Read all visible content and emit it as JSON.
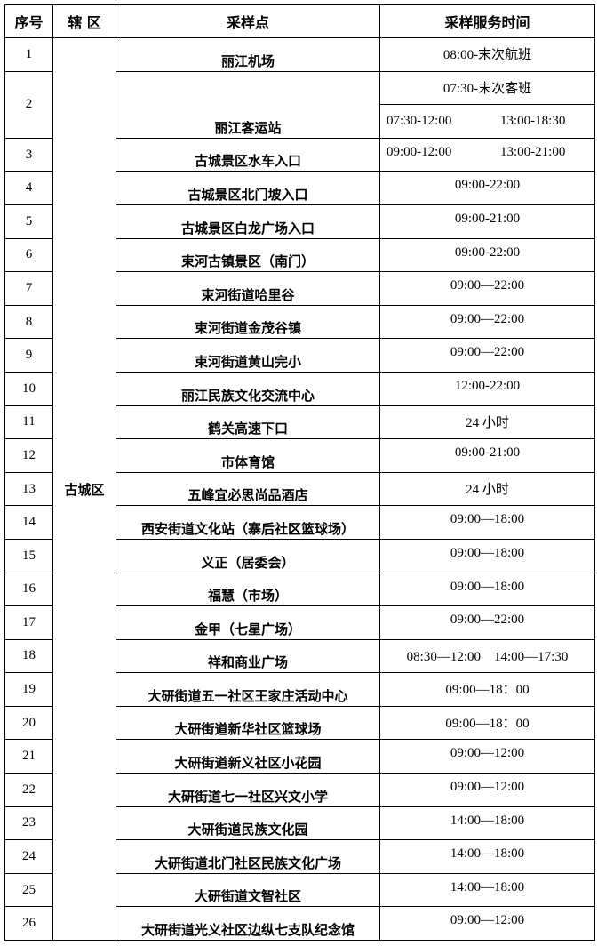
{
  "headers": {
    "no": "序号",
    "district": "辖 区",
    "site": "采样点",
    "time": "采样服务时间"
  },
  "district": "古城区",
  "rows": [
    {
      "no": "1",
      "site": "丽江机场",
      "time": "08:00-末次航班"
    },
    {
      "no": "2",
      "site": "丽江客运站",
      "time": "07:30-末次客班",
      "time_extra": [
        "07:30-12:00",
        "13:00-18:30"
      ]
    },
    {
      "no": "3",
      "site": "古城景区水车入口",
      "times": [
        "09:00-12:00",
        "13:00-21:00"
      ]
    },
    {
      "no": "4",
      "site": "古城景区北门坡入口",
      "time": "09:00-22:00"
    },
    {
      "no": "5",
      "site": "古城景区白龙广场入口",
      "time": "09:00-21:00"
    },
    {
      "no": "6",
      "site": "束河古镇景区（南门）",
      "time": "09:00-22:00"
    },
    {
      "no": "7",
      "site": "束河街道哈里谷",
      "time": "09:00—22:00"
    },
    {
      "no": "8",
      "site": "束河街道金茂谷镇",
      "time": "09:00—22:00"
    },
    {
      "no": "9",
      "site": "束河街道黄山完小",
      "time": "09:00—22:00"
    },
    {
      "no": "10",
      "site": "丽江民族文化交流中心",
      "time": "12:00-22:00"
    },
    {
      "no": "11",
      "site": "鹤关高速下口",
      "time": "24 小时"
    },
    {
      "no": "12",
      "site": "市体育馆",
      "time": "09:00-21:00"
    },
    {
      "no": "13",
      "site": "五峰宜必思尚品酒店",
      "time": "24 小时"
    },
    {
      "no": "14",
      "site": "西安街道文化站（寨后社区篮球场）",
      "time": "09:00—18:00"
    },
    {
      "no": "15",
      "site": "义正（居委会）",
      "time": "09:00—18:00"
    },
    {
      "no": "16",
      "site": "福慧（市场）",
      "time": "09:00—18:00"
    },
    {
      "no": "17",
      "site": "金甲（七星广场）",
      "time": "09:00—22:00"
    },
    {
      "no": "18",
      "site": "祥和商业广场",
      "time": "08:30—12:00　14:00—17:30"
    },
    {
      "no": "19",
      "site": "大研街道五一社区王家庄活动中心",
      "time": "09:00—18：00"
    },
    {
      "no": "20",
      "site": "大研街道新华社区篮球场",
      "time": "09:00—18：00"
    },
    {
      "no": "21",
      "site": "大研街道新义社区小花园",
      "time": "09:00—12:00"
    },
    {
      "no": "22",
      "site": "大研街道七一社区兴文小学",
      "time": "09:00—12:00"
    },
    {
      "no": "23",
      "site": "大研街道民族文化园",
      "time": "14:00—18:00"
    },
    {
      "no": "24",
      "site": "大研街道北门社区民族文化广场",
      "time": "14:00—18:00"
    },
    {
      "no": "25",
      "site": "大研街道文智社区",
      "time": "14:00—18:00"
    },
    {
      "no": "26",
      "site": "大研街道光义社区边纵七支队纪念馆",
      "time": "09:00—12:00"
    }
  ]
}
